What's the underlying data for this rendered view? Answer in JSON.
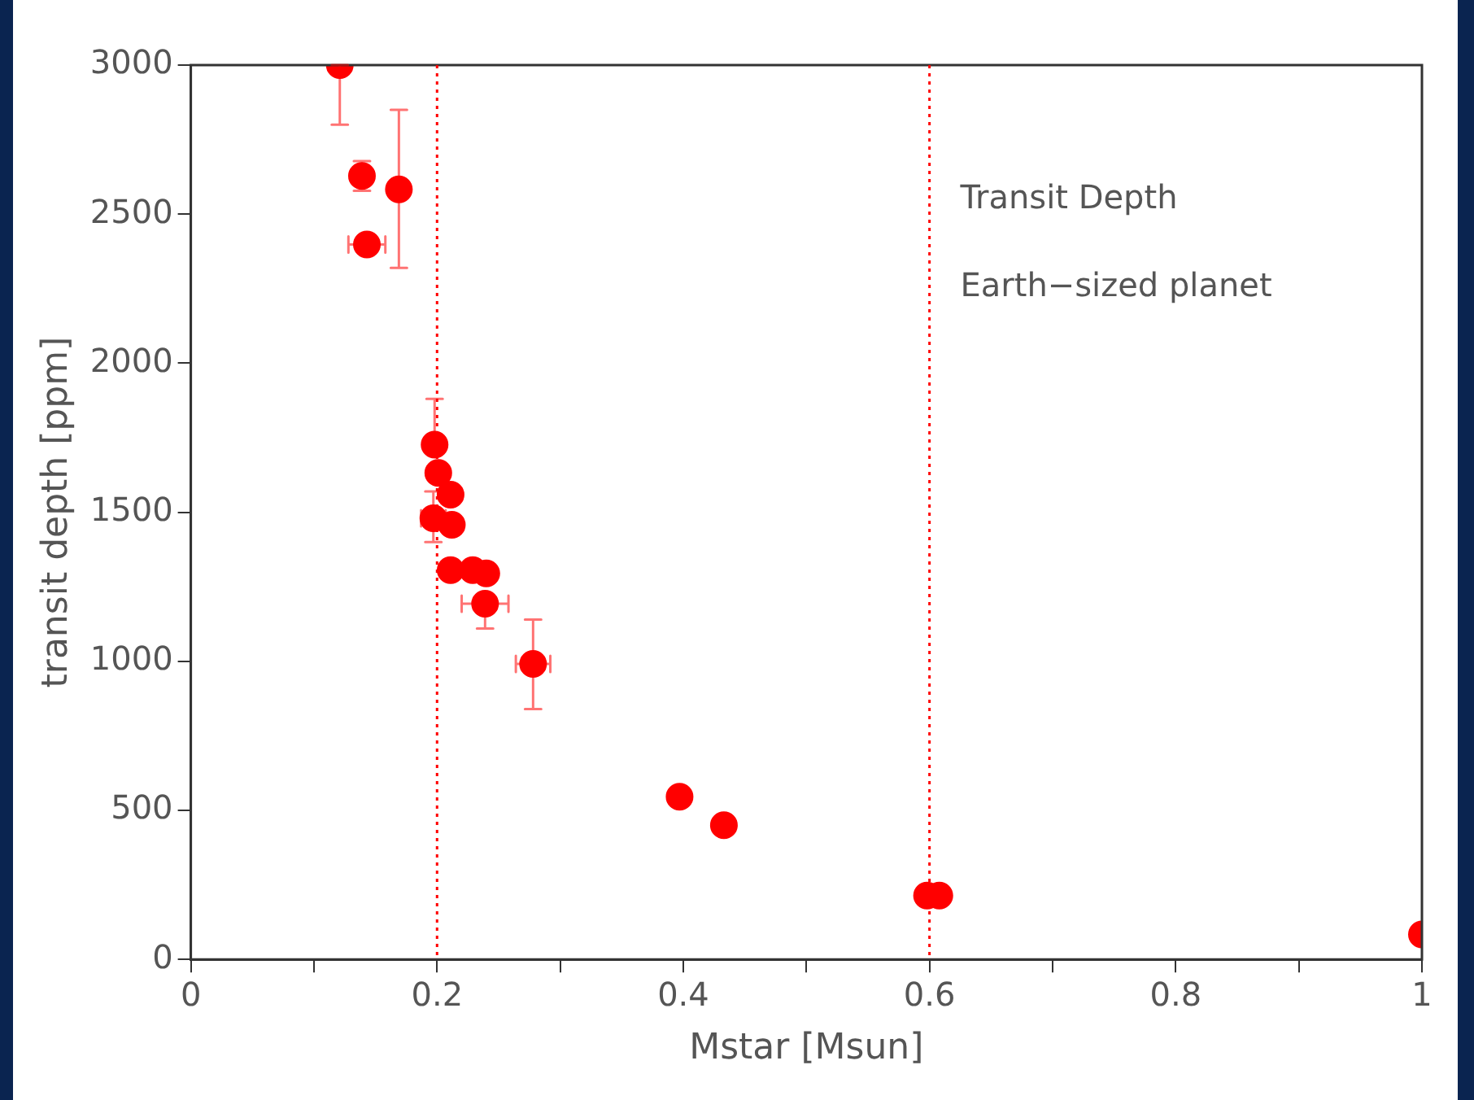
{
  "chart_data": {
    "type": "scatter",
    "xlabel": "Mstar [Msun]",
    "ylabel": "transit depth [ppm]",
    "series": [
      {
        "type": "scatter",
        "color": "#ff0000",
        "x": [
          0.121,
          0.139,
          0.169,
          0.143,
          0.198,
          0.201,
          0.211,
          0.197,
          0.212,
          0.211,
          0.229,
          0.24,
          0.239,
          0.278,
          0.397,
          0.433,
          0.598,
          0.608,
          1.0
        ],
        "values": [
          3000,
          2628,
          2583,
          2398,
          1727,
          1632,
          1559,
          1480,
          1458,
          1306,
          1306,
          1295,
          1193,
          991,
          546,
          450,
          214,
          214,
          84
        ],
        "errors": [
          [
            2800,
            3000
          ],
          50,
          [
            2320,
            2850
          ],
          null,
          [
            1727,
            1880
          ],
          null,
          null,
          [
            1400,
            1570
          ],
          null,
          null,
          null,
          null,
          [
            1110,
            1193
          ],
          [
            840,
            1140
          ],
          null,
          null,
          null,
          null,
          null
        ],
        "xerrors": [
          null,
          null,
          null,
          0.015,
          null,
          null,
          null,
          0.01,
          null,
          null,
          null,
          null,
          0.019,
          0.014,
          null,
          null,
          null,
          null,
          null
        ]
      }
    ],
    "xlim": [
      0,
      1
    ],
    "ylim": [
      0,
      3000
    ],
    "xticks": [
      0,
      {
        "value": 0.1,
        "label": null
      },
      0.2,
      {
        "value": 0.3,
        "label": null
      },
      0.4,
      {
        "value": 0.5,
        "label": null
      },
      0.6,
      {
        "value": 0.7,
        "label": null
      },
      0.8,
      {
        "value": 0.9,
        "label": null
      },
      1
    ],
    "yticks": [
      0,
      500,
      1000,
      1500,
      2000,
      2500,
      3000
    ],
    "marker": "circle",
    "grid": false,
    "legend": false,
    "ref_lines": [
      {
        "axis": "x",
        "value": 0.2,
        "color": "#ff0000",
        "line_style": "dotted"
      },
      {
        "axis": "x",
        "value": 0.6,
        "color": "#ff0000",
        "line_style": "dotted"
      }
    ],
    "annotations": [
      "Transit Depth",
      "Earth−sized planet"
    ]
  }
}
